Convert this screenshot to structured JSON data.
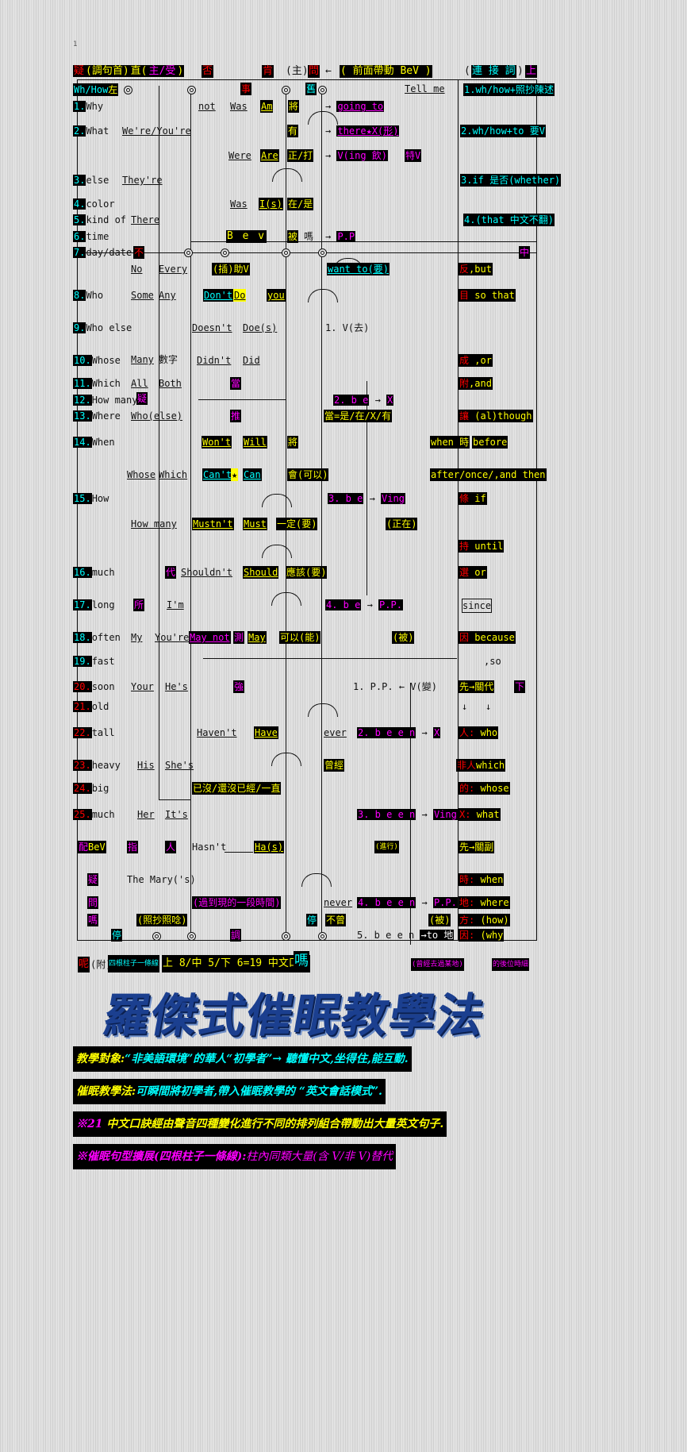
{
  "page_mark": "1",
  "header": {
    "c1": "疑",
    "c2": "(調句首)",
    "c3": "直(",
    "c4": "主/受",
    "c5": ")",
    "neg": "否",
    "ken": "肯",
    "zhu": "(主)",
    "wen": "問",
    "arrow": "←",
    "front": "( 前面帶動 BeV )",
    "link_open": "(",
    "link": "連 接 詞",
    "link_close": ")",
    "up": "上"
  },
  "row_wh": {
    "wh": "Wh/How",
    "left": "左",
    "shi": "事",
    "jiu": "舊",
    "tellme": "Tell me"
  },
  "col_left": [
    {
      "num": "1.",
      "word": "Why"
    },
    {
      "num": "2.",
      "word": "What"
    },
    {
      "num": "3.",
      "word": "else"
    },
    {
      "num": "4.",
      "word": "color"
    },
    {
      "num": "5.",
      "word": "kind of"
    },
    {
      "num": "6.",
      "word": "time"
    },
    {
      "num": "7.",
      "word": "day/date"
    },
    {
      "num": "8.",
      "word": "Who"
    },
    {
      "num": "9.",
      "word": "Who else"
    },
    {
      "num": "10.",
      "word": "Whose"
    },
    {
      "num": "11.",
      "word": "Which"
    },
    {
      "num": "12.",
      "word": "How many"
    },
    {
      "num": "13.",
      "word": "Where"
    },
    {
      "num": "14.",
      "word": "When"
    },
    {
      "num": "15.",
      "word": "How"
    },
    {
      "num": "16.",
      "word": "much"
    },
    {
      "num": "17.",
      "word": "long"
    },
    {
      "num": "18.",
      "word": "often"
    },
    {
      "num": "19.",
      "word": "fast"
    },
    {
      "num": "20.",
      "word": "soon"
    },
    {
      "num": "21.",
      "word": "old"
    },
    {
      "num": "22.",
      "word": "tall"
    },
    {
      "num": "23.",
      "word": "heavy"
    },
    {
      "num": "24.",
      "word": "big"
    },
    {
      "num": "25.",
      "word": "much"
    }
  ],
  "subjects": {
    "were_youre": "We're/You're",
    "theyre": "They're",
    "there": "There",
    "no": "No",
    "every": "Every",
    "some": "Some",
    "any": "Any",
    "many": "Many",
    "shuzi": "數字",
    "all": "All",
    "both": "Both",
    "who_else": "Who(else)",
    "whose": "Whose",
    "which": "Which",
    "howmany": "How many",
    "dai": "代",
    "suo": "所",
    "im": "I'm",
    "my": "My",
    "youre": "You're",
    "your": "Your",
    "hes": "He's",
    "his": "His",
    "shes": "She's",
    "her": "Her",
    "its": "It's",
    "pei": "配",
    "bev": "BeV",
    "zhi": "指",
    "ren": "人",
    "the_marys": "The Mary('s)"
  },
  "verbs": {
    "not": "not",
    "was": "Was",
    "am": "Am",
    "jiang": "將",
    "you": "有",
    "were": "Were",
    "are": "Are",
    "zheng_da": "正/打",
    "was2": "Was",
    "is": "I(s)",
    "zai_shi": "在/是",
    "bev": "B e v",
    "bei": "被",
    "ma": "嗎",
    "bu": "不",
    "cha_zhu": "(插)助V",
    "dont": "Don't",
    "do": "Do",
    "you2": "you",
    "doesnt": "Doesn't",
    "does": "Doe(s)",
    "didnt": "Didn't",
    "did": "Did",
    "dang": "當",
    "tui": "推",
    "wont": "Won't",
    "will": "Will",
    "jiang2": "將",
    "cant": "Can't",
    "can": "Can",
    "hui": "會(可以)",
    "mustnt": "Mustn't",
    "must": "Must",
    "yiding": "一定(要)",
    "shouldnt": "Shouldn't",
    "should": "Should",
    "yinggai": "應該(要)",
    "may_not": "May not",
    "ce": "測",
    "may": "May",
    "keyi": "可以(能)",
    "qiang": "強",
    "havent": "Haven't",
    "have": "Have",
    "already": "已沒/還沒已經/一直",
    "hasnt": "Hasn't",
    "has": "Ha(s)",
    "guoqu": "(過到現的一段時間)",
    "zhaochao": "(照抄照唸)",
    "ting": "停",
    "diao": "調",
    "ting2": "停"
  },
  "middle": {
    "goingto": "going to",
    "there_x": "there★X(形)",
    "ving_yin": "V(ing 飲)",
    "te_v": "特V",
    "pp": "P.P",
    "wantto": "want to(要)",
    "v_qu": "1. V(去)",
    "be2": "2. b e",
    "x": "X",
    "dang_shi": "當=是/在/X/有",
    "be3": "3. b e",
    "ving": "Ving",
    "zhengzai": "(正在)",
    "be4": "4. b e",
    "pp2": "P.P.",
    "bei2": "(被)",
    "pp_v": "1. P.P.  ← V(變)",
    "ever": "ever",
    "been2": "2. b e e n",
    "x2": "X",
    "cengjing": "曾經",
    "been3": "3. b e e n",
    "ving3": "Ving X",
    "jinxing": "(進行)",
    "never": "never",
    "been4": "4. b e e n",
    "pp4": "P.P.",
    "bei4": "(被)",
    "buceng": "不曾",
    "been5": "5. b e e n",
    "to_di": "→to 地",
    "gemo": "(曾經去過某地)"
  },
  "right": {
    "wh_how": "1.wh/how+照抄陳述",
    "wh_how_to": "2.wh/how+to 要V",
    "if": "3.if 是否(whether)",
    "that": "4.(that 中文不翻)",
    "zhong": "中",
    "fan": "反",
    "but": ",but",
    "mu": "目",
    "so_that": "so that",
    "cheng": "成",
    "or": ",or",
    "fu": "附",
    "and": ",and",
    "rang": "讓",
    "although": "(al)though",
    "when_shi": "when 時",
    "before": "before",
    "after": "after/once/,and then",
    "tiao": "條",
    "if2": "if",
    "chi": "持",
    "until": "until",
    "xuan": "選",
    "or2": "or",
    "since": "since",
    "yin": "因",
    "because": "because",
    "so": ",so",
    "xian": "先→關代",
    "xia": "下",
    "down1": "↓",
    "down2": "↓",
    "ren": "人:",
    "who": "who",
    "feiren": "非人",
    "which": "which",
    "de": "的:",
    "whose": "whose",
    "x": "X:",
    "what": "what",
    "xian2": "先→關副",
    "shi": "時:",
    "when": "when",
    "di": "地:",
    "where": "where",
    "fang": "方:",
    "how": "(how)",
    "yin2": "因:",
    "why": "(why",
    "dehou": "的後位時細"
  },
  "footer_row": {
    "ne": "呢",
    "fu": "(附)",
    "four": "四根柱子一條線",
    "formula": "上 8/中 5/下 6=19 中文口訣",
    "ma": "嗎"
  },
  "title": "羅傑式催眠教學法",
  "intro_lines": [
    {
      "y": "教學對象:",
      "x": "“非美語環境”的華人“初學者”→ 聽懂中文,坐得住,能互動."
    },
    {
      "y": "催眠教學法:",
      "x": "可瞬間將初學者,帶入催眠教學的 “英文會話模式”."
    },
    {
      "y": "※21",
      "x": "中文口訣經由聲音四種變化進行不同的排列組合帶動出大量英文句子."
    },
    {
      "y": "※催眠句型擴展(四根柱子一條線):",
      "x": "柱內同類大量(含 V/非 V)替代"
    }
  ],
  "colors": {
    "yellow": "#ffff00",
    "magenta": "#ff00ff",
    "cyan": "#00ffff",
    "red": "#ff0000",
    "title_blue": "#1b3f8f"
  }
}
